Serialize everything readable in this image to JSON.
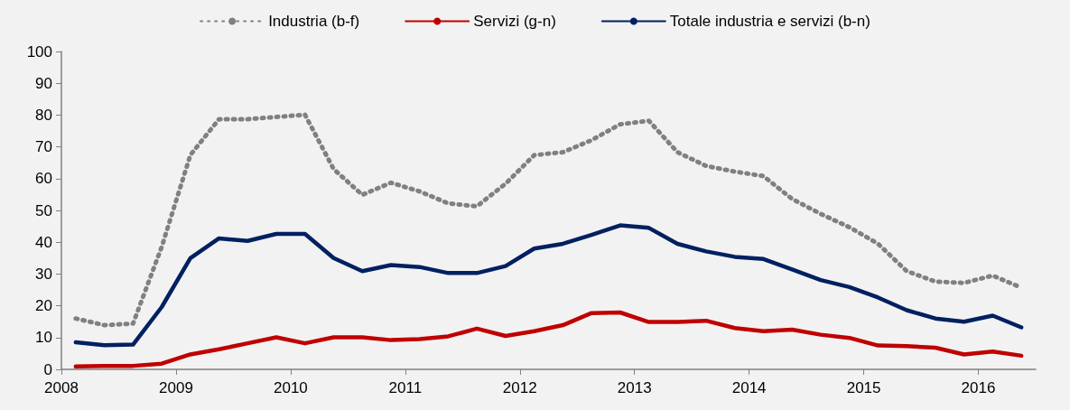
{
  "chart_data": {
    "type": "line",
    "x": [
      2008.125,
      2008.375,
      2008.625,
      2008.875,
      2009.125,
      2009.375,
      2009.625,
      2009.875,
      2010.125,
      2010.375,
      2010.625,
      2010.875,
      2011.125,
      2011.375,
      2011.625,
      2011.875,
      2012.125,
      2012.375,
      2012.625,
      2012.875,
      2013.125,
      2013.375,
      2013.625,
      2013.875,
      2014.125,
      2014.375,
      2014.625,
      2014.875,
      2015.125,
      2015.375,
      2015.625,
      2015.875,
      2016.125,
      2016.375
    ],
    "series": [
      {
        "name": "Industria (b-f)",
        "color": "#808080",
        "line_style": "dotted",
        "values": [
          16,
          13.9,
          14.4,
          38.5,
          67.4,
          78.7,
          78.7,
          79.4,
          80.1,
          63,
          54.9,
          58.7,
          56,
          52.2,
          51.3,
          58.4,
          67.4,
          68.3,
          72.1,
          77.1,
          78.2,
          68.3,
          64,
          62.2,
          60.8,
          53.6,
          48.9,
          44.7,
          39.5,
          30.9,
          27.6,
          27.2,
          29.5,
          25.7
        ]
      },
      {
        "name": "Servizi (g-n)",
        "color": "#c00000",
        "line_style": "solid",
        "values": [
          0.9,
          1.1,
          1.1,
          1.8,
          4.7,
          6.3,
          8.2,
          10.1,
          8.2,
          10.1,
          10.1,
          9.2,
          9.5,
          10.4,
          12.8,
          10.5,
          12,
          13.9,
          17.7,
          17.9,
          14.9,
          14.9,
          15.3,
          13,
          12,
          12.5,
          10.9,
          9.9,
          7.5,
          7.3,
          6.8,
          4.7,
          5.6,
          4.3
        ]
      },
      {
        "name": "Totale industria e servizi (b-n)",
        "color": "#002060",
        "line_style": "solid",
        "values": [
          8.5,
          7.6,
          7.8,
          19.6,
          35,
          41.2,
          40.4,
          42.6,
          42.6,
          35,
          30.9,
          32.8,
          32.2,
          30.3,
          30.3,
          32.5,
          38,
          39.5,
          42.3,
          45.3,
          44.5,
          39.5,
          37.1,
          35.4,
          34.7,
          31.4,
          28.1,
          25.9,
          22.6,
          18.6,
          16,
          15,
          16.9,
          13.2
        ]
      }
    ],
    "xlim": [
      2008,
      2016.5
    ],
    "xticks": [
      2008,
      2009,
      2010,
      2011,
      2012,
      2013,
      2014,
      2015,
      2016
    ],
    "ylim": [
      0,
      100
    ],
    "yticks": [
      0,
      10,
      20,
      30,
      40,
      50,
      60,
      70,
      80,
      90,
      100
    ],
    "grid": false,
    "legend": "top",
    "marker": "none"
  }
}
